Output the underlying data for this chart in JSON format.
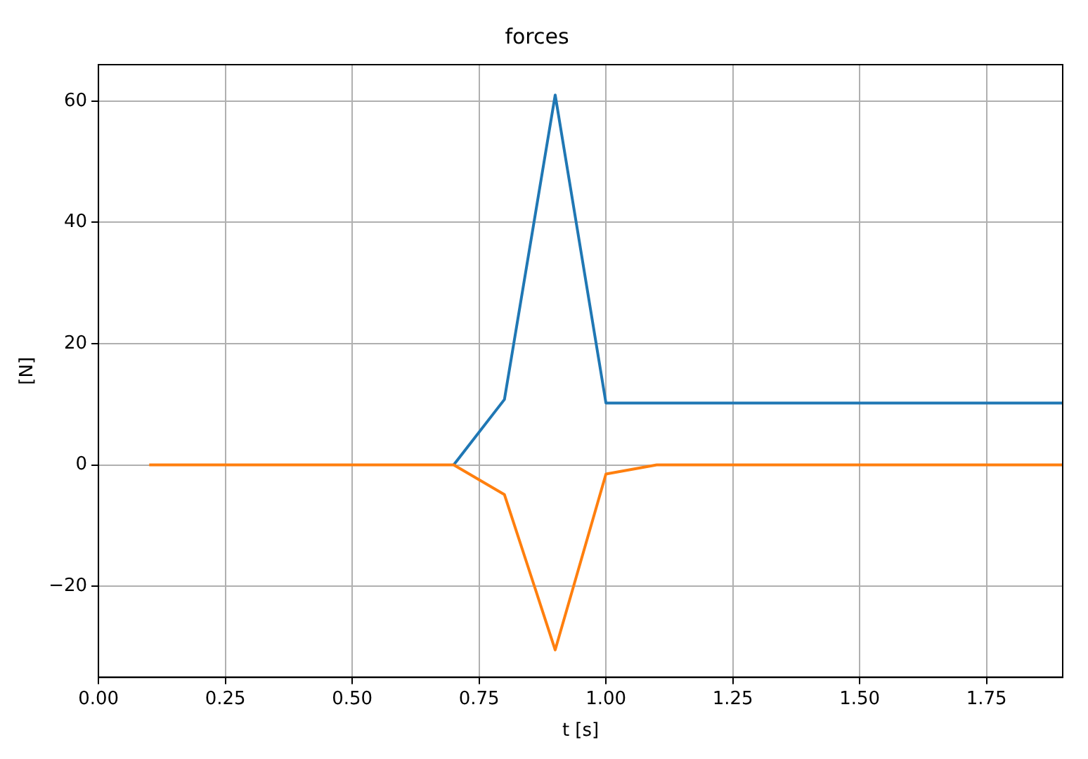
{
  "chart_data": {
    "type": "line",
    "title": "forces",
    "xlabel": "t [s]",
    "ylabel": "[N]",
    "x": [
      0.1,
      0.2,
      0.3,
      0.4,
      0.5,
      0.6,
      0.7,
      0.8,
      0.9,
      1.0,
      1.1,
      1.2,
      1.3,
      1.4,
      1.5,
      1.6,
      1.7,
      1.8,
      1.9
    ],
    "series": [
      {
        "color": "#1f77b4",
        "values": [
          null,
          null,
          null,
          null,
          null,
          null,
          0,
          10.8,
          61,
          10.2,
          10.2,
          10.2,
          10.2,
          10.2,
          10.2,
          10.2,
          10.2,
          10.2,
          10.2
        ]
      },
      {
        "color": "#ff7f0e",
        "values": [
          0,
          0,
          0,
          0,
          0,
          0,
          0,
          -4.9,
          -30.5,
          -1.5,
          0,
          0,
          0,
          0,
          0,
          0,
          0,
          0,
          0
        ]
      }
    ],
    "xlim": [
      0,
      1.9
    ],
    "ylim": [
      -35,
      66
    ],
    "xticks": [
      {
        "value": 0,
        "label": "0.00"
      },
      {
        "value": 0.25,
        "label": "0.25"
      },
      {
        "value": 0.5,
        "label": "0.50"
      },
      {
        "value": 0.75,
        "label": "0.75"
      },
      {
        "value": 1,
        "label": "1.00"
      },
      {
        "value": 1.25,
        "label": "1.25"
      },
      {
        "value": 1.5,
        "label": "1.50"
      },
      {
        "value": 1.75,
        "label": "1.75"
      }
    ],
    "yticks": [
      {
        "value": -20,
        "label": "−20"
      },
      0,
      20,
      40,
      60
    ],
    "grid": true,
    "legend": false,
    "marker": "none",
    "line_style": "solid"
  }
}
